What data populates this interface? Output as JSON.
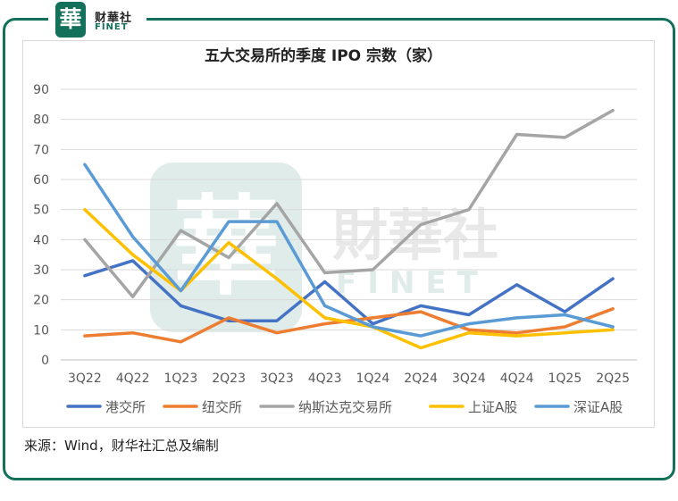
{
  "logo": {
    "mark": "華",
    "name_cn": "财華社",
    "name_en": "FINET"
  },
  "watermark": {
    "mark": "華",
    "name_cn": "財華社",
    "name_en": "FINET"
  },
  "source_note": "来源：Wind，财华社汇总及编制",
  "colors": {
    "frame": "#13705a",
    "港交所": "#4472c4",
    "纽交所": "#ed7d31",
    "纳斯达克交易所": "#a5a5a5",
    "上证A股": "#ffc000",
    "深证A股": "#5b9bd5"
  },
  "chart_data": {
    "type": "line",
    "title": "五大交易所的季度 IPO 宗数（家）",
    "xlabel": "",
    "ylabel": "",
    "ylim": [
      0,
      90
    ],
    "yticks": [
      0,
      10,
      20,
      30,
      40,
      50,
      60,
      70,
      80,
      90
    ],
    "grid": true,
    "legend_position": "bottom",
    "categories": [
      "3Q22",
      "4Q22",
      "1Q23",
      "2Q23",
      "3Q23",
      "4Q23",
      "1Q24",
      "2Q24",
      "3Q24",
      "4Q24",
      "1Q25",
      "2Q25"
    ],
    "series": [
      {
        "name": "港交所",
        "color": "#4472c4",
        "values": [
          28,
          33,
          18,
          13,
          13,
          26,
          12,
          18,
          15,
          25,
          16,
          27
        ]
      },
      {
        "name": "纽交所",
        "color": "#ed7d31",
        "values": [
          8,
          9,
          6,
          14,
          9,
          12,
          14,
          16,
          10,
          9,
          11,
          17
        ]
      },
      {
        "name": "纳斯达克交易所",
        "color": "#a5a5a5",
        "values": [
          40,
          21,
          43,
          34,
          52,
          29,
          30,
          45,
          50,
          75,
          74,
          83
        ]
      },
      {
        "name": "上证A股",
        "color": "#ffc000",
        "values": [
          50,
          35,
          23,
          39,
          27,
          14,
          11,
          4,
          9,
          8,
          9,
          10
        ]
      },
      {
        "name": "深证A股",
        "color": "#5b9bd5",
        "values": [
          65,
          41,
          23,
          46,
          46,
          18,
          11,
          8,
          12,
          14,
          15,
          11
        ]
      }
    ]
  }
}
